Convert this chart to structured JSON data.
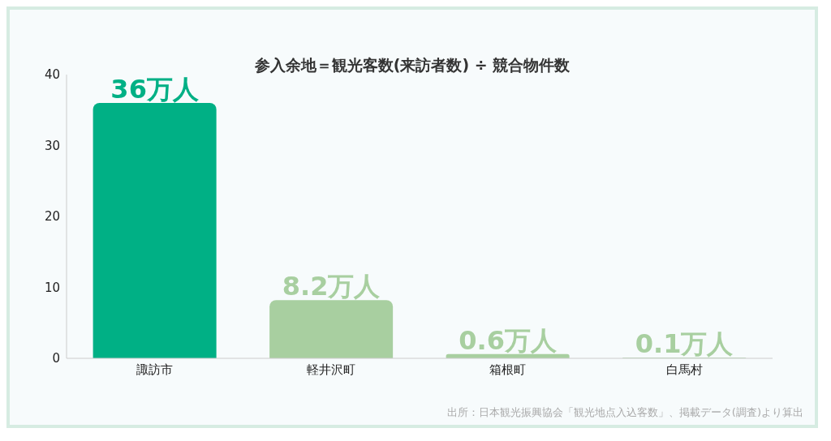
{
  "chart_data": {
    "type": "bar",
    "title": "参入余地＝観光客数(来訪者数) ÷ 競合物件数",
    "categories": [
      "諏訪市",
      "軽井沢町",
      "箱根町",
      "白馬村"
    ],
    "values": [
      36,
      8.2,
      0.6,
      0.1
    ],
    "colors": [
      "#00b085",
      "#a8cfa0",
      "#a8cfa0",
      "#a8cfa0"
    ],
    "value_labels": [
      "36万人",
      "8.2万人",
      "0.6万人",
      "0.1万人"
    ],
    "ylim": [
      0,
      40
    ],
    "yticks": [
      0,
      10,
      20,
      30,
      40
    ],
    "grid": false,
    "legend": false,
    "annotations": [
      "出所：日本観光振興協会「観光地点入込客数」、掲載データ(調査)より算出"
    ]
  }
}
